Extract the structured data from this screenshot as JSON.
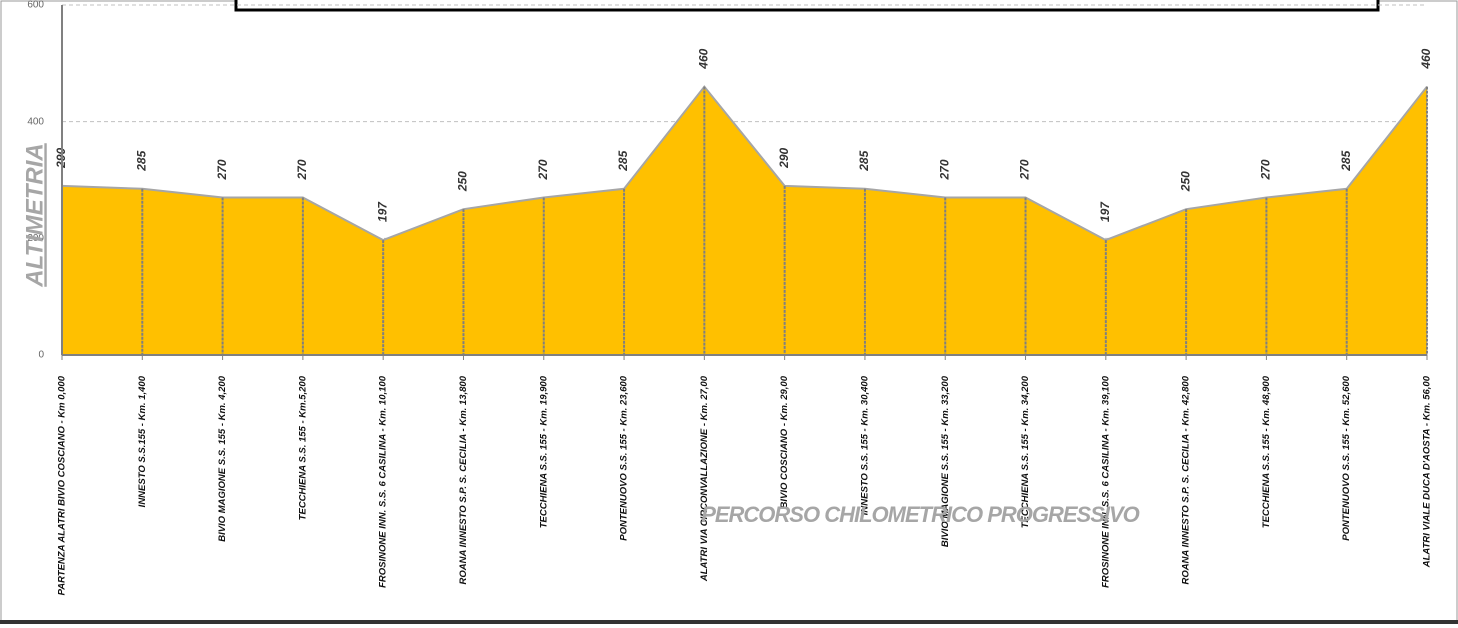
{
  "chart_data": {
    "type": "area",
    "categories": [
      "PARTENZA ALATRI BIVIO COSCIANO - Km 0,000",
      "INNESTO S.S.155 - Km. 1,400",
      "BIVIO MAGIONE S.S. 155 - Km. 4,200",
      "TECCHIENA S.S. 155 - Km.5,200",
      "FROSINONE INN. S.S. 6 CASILINA - Km. 10,100",
      "ROANA INNESTO S.P. S. CECILIA - Km. 13,800",
      "TECCHIENA S.S. 155 - Km. 19,900",
      "PONTENUOVO S.S. 155 - Km. 23,600",
      "ALATRI VIA CIRCONVALLAZIONE - Km. 27,00",
      "BIVIO COSCIANO - Km. 29,00",
      "INNESTO S.S. 155 - Km. 30,400",
      "BIVIO MAGIONE S.S. 155 - Km. 33,200",
      "TECCHIENA S.S. 155 - Km. 34,200",
      "FROSINONE INN. S.S. 6 CASILINA - Km. 39,100",
      "ROANA INNESTO S.P. S. CECILIA - Km. 42,800",
      "TECCHIENA S.S. 155 - Km. 48,900",
      "PONTENUOVO S.S. 155 - Km. 52,600",
      "ALATRI VIALE DUCA D'AOSTA - Km. 56,00"
    ],
    "values": [
      290,
      285,
      270,
      270,
      197,
      250,
      270,
      285,
      460,
      290,
      285,
      270,
      270,
      197,
      250,
      270,
      285,
      460
    ],
    "color": "#FFC000",
    "ylim": [
      0,
      600
    ],
    "yticks": [
      0,
      200,
      400,
      600
    ],
    "grid": true,
    "y_label": "ALTIMETRIA",
    "x_label": "PERCORSO CHILOMETRICO PROGRESSIVO"
  }
}
